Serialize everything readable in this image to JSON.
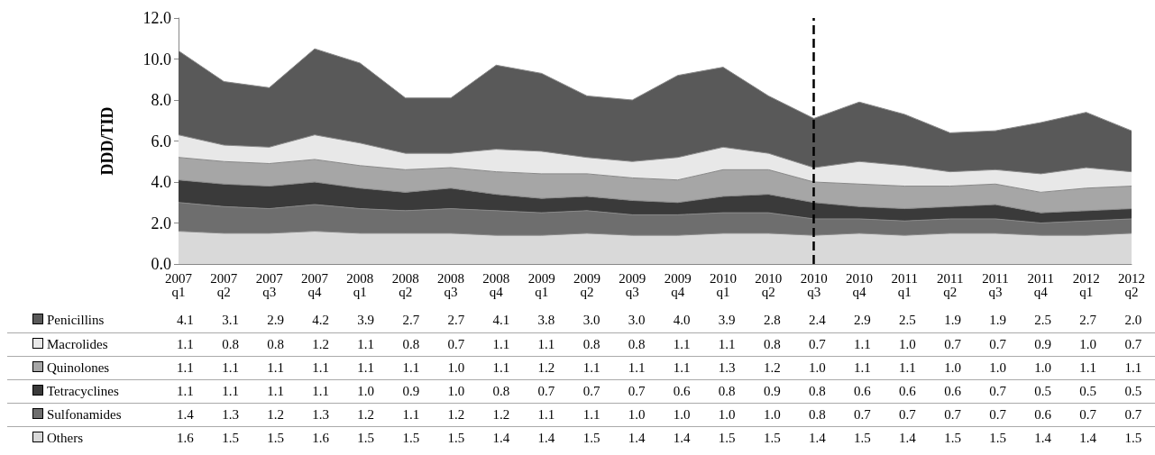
{
  "chart_data": {
    "type": "area",
    "stacked": true,
    "ylabel": "DDD/TID",
    "categories": [
      "2007 q1",
      "2007 q2",
      "2007 q3",
      "2007 q4",
      "2008 q1",
      "2008 q2",
      "2008 q3",
      "2008 q4",
      "2009 q1",
      "2009 q2",
      "2009 q3",
      "2009 q4",
      "2010 q1",
      "2010 q2",
      "2010 q3",
      "2010 q4",
      "2011 q1",
      "2011 q2",
      "2011 q3",
      "2011 q4",
      "2012 q1",
      "2012 q2"
    ],
    "series": [
      {
        "name": "Others",
        "color": "#d9d9d9",
        "values": [
          1.6,
          1.5,
          1.5,
          1.6,
          1.5,
          1.5,
          1.5,
          1.4,
          1.4,
          1.5,
          1.4,
          1.4,
          1.5,
          1.5,
          1.4,
          1.5,
          1.4,
          1.5,
          1.5,
          1.4,
          1.4,
          1.5
        ],
        "value_labels": [
          "1.6",
          "1.5",
          "1.5",
          "1.6",
          "1.5",
          "1.5",
          "1.5",
          "1.4",
          "1.4",
          "1.5",
          "1.4",
          "1.4",
          "1.5",
          "1.5",
          "1.4",
          "1.5",
          "1.4",
          "1.5",
          "1.5",
          "1.4",
          "1.4",
          "1.5"
        ]
      },
      {
        "name": "Sulfonamides",
        "color": "#6e6e6e",
        "values": [
          1.4,
          1.3,
          1.2,
          1.3,
          1.2,
          1.1,
          1.2,
          1.2,
          1.1,
          1.1,
          1.0,
          1.0,
          1.0,
          1.0,
          0.8,
          0.7,
          0.7,
          0.7,
          0.7,
          0.6,
          0.7,
          0.7
        ],
        "value_labels": [
          "1.4",
          "1.3",
          "1.2",
          "1.3",
          "1.2",
          "1.1",
          "1.2",
          "1.2",
          "1.1",
          "1.1",
          "1.0",
          "1.0",
          "1.0",
          "1.0",
          "0.8",
          "0.7",
          "0.7",
          "0.7",
          "0.7",
          "0.6",
          "0.7",
          "0.7"
        ]
      },
      {
        "name": "Tetracyclines",
        "color": "#3a3a3a",
        "values": [
          1.1,
          1.1,
          1.1,
          1.1,
          1.0,
          0.9,
          1.0,
          0.8,
          0.7,
          0.7,
          0.7,
          0.6,
          0.8,
          0.9,
          0.8,
          0.6,
          0.6,
          0.6,
          0.7,
          0.5,
          0.5,
          0.5
        ],
        "value_labels": [
          "1.1",
          "1.1",
          "1.1",
          "1.1",
          "1.0",
          "0.9",
          "1.0",
          "0.8",
          "0.7",
          "0.7",
          "0.7",
          "0.6",
          "0.8",
          "0.9",
          "0.8",
          "0.6",
          "0.6",
          "0.6",
          "0.7",
          "0.5",
          "0.5",
          "0.5"
        ]
      },
      {
        "name": "Quinolones",
        "color": "#a6a6a6",
        "values": [
          1.1,
          1.1,
          1.1,
          1.1,
          1.1,
          1.1,
          1.0,
          1.1,
          1.2,
          1.1,
          1.1,
          1.1,
          1.3,
          1.2,
          1.0,
          1.1,
          1.1,
          1.0,
          1.0,
          1.0,
          1.1,
          1.1
        ],
        "value_labels": [
          "1.1",
          "1.1",
          "1.1",
          "1.1",
          "1.1",
          "1.1",
          "1.0",
          "1.1",
          "1.2",
          "1.1",
          "1.1",
          "1.1",
          "1.3",
          "1.2",
          "1.0",
          "1.1",
          "1.1",
          "1.0",
          "1.0",
          "1.0",
          "1.1",
          "1.1"
        ]
      },
      {
        "name": "Macrolides",
        "color": "#e8e8e8",
        "values": [
          1.1,
          0.8,
          0.8,
          1.2,
          1.1,
          0.8,
          0.7,
          1.1,
          1.1,
          0.8,
          0.8,
          1.1,
          1.1,
          0.8,
          0.7,
          1.1,
          1.0,
          0.7,
          0.7,
          0.9,
          1.0,
          0.7
        ],
        "value_labels": [
          "1.1",
          "0.8",
          "0.8",
          "1.2",
          "1.1",
          "0.8",
          "0.7",
          "1.1",
          "1.1",
          "0.8",
          "0.8",
          "1.1",
          "1.1",
          "0.8",
          "0.7",
          "1.1",
          "1.0",
          "0.7",
          "0.7",
          "0.9",
          "1.0",
          "0.7"
        ]
      },
      {
        "name": "Penicillins",
        "color": "#595959",
        "values": [
          4.1,
          3.1,
          2.9,
          4.2,
          3.9,
          2.7,
          2.7,
          4.1,
          3.8,
          3.0,
          3.0,
          4.0,
          3.9,
          2.8,
          2.4,
          2.9,
          2.5,
          1.9,
          1.9,
          2.5,
          2.7,
          2.0
        ],
        "value_labels": [
          "4.1",
          "3.1",
          "2.9",
          "4.2",
          "3.9",
          "2.7",
          "2.7",
          "4.1",
          "3.8",
          "3.0",
          "3.0",
          "4.0",
          "3.9",
          "2.8",
          "2.4",
          "2.9",
          "2.5",
          "1.9",
          "1.9",
          "2.5",
          "2.7",
          "2.0"
        ]
      }
    ],
    "ylim": [
      0,
      12
    ],
    "yticks": [
      {
        "value": 0,
        "label": "0.0"
      },
      {
        "value": 2,
        "label": "2.0"
      },
      {
        "value": 4,
        "label": "4.0"
      },
      {
        "value": 6,
        "label": "6.0"
      },
      {
        "value": 8,
        "label": "8.0"
      },
      {
        "value": 10,
        "label": "10.0"
      },
      {
        "value": 12,
        "label": "12.0"
      }
    ],
    "ref_lines": [
      {
        "axis": "x",
        "value": "2010 q3",
        "color": "#000000",
        "line_style": "dashed"
      }
    ],
    "grid": false,
    "legend": "bottom"
  }
}
